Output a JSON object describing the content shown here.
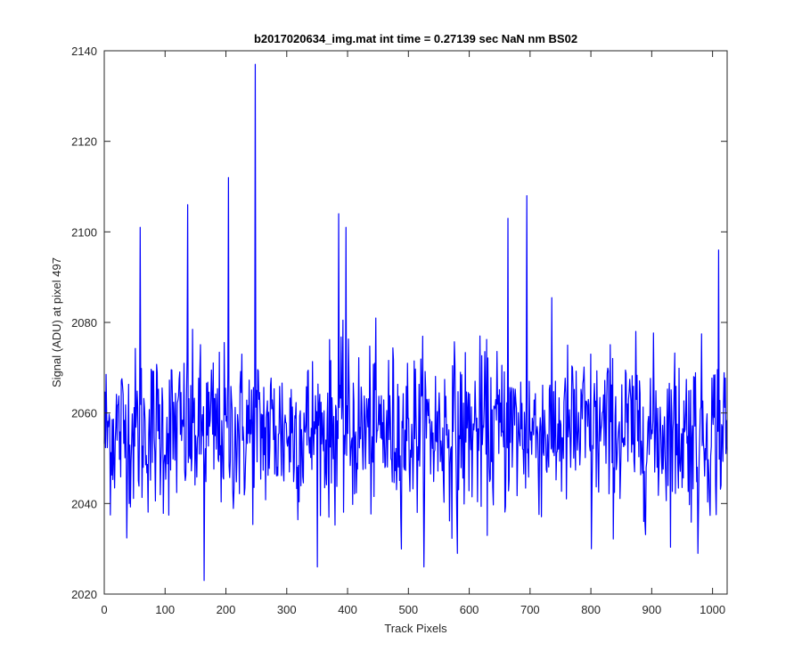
{
  "chart_data": {
    "type": "line",
    "title": "b2017020634_img.mat int time = 0.27139 sec  NaN nm BS02",
    "xlabel": "Track Pixels",
    "ylabel": "Signal (ADU) at pixel 497",
    "xlim": [
      0,
      1024
    ],
    "ylim": [
      2020,
      2140
    ],
    "xticks": [
      0,
      100,
      200,
      300,
      400,
      500,
      600,
      700,
      800,
      900,
      1000
    ],
    "yticks": [
      2020,
      2040,
      2060,
      2080,
      2100,
      2120,
      2140
    ],
    "xtick_labels": [
      "0",
      "100",
      "200",
      "300",
      "400",
      "500",
      "600",
      "700",
      "800",
      "900",
      "1000"
    ],
    "ytick_labels": [
      "2020",
      "2040",
      "2060",
      "2080",
      "2100",
      "2120",
      "2140"
    ],
    "grid": false,
    "series": [
      {
        "color": "#0000ff",
        "n_points": 1024,
        "baseline": 2056,
        "noise_amplitude": 9,
        "notable_points": [
          {
            "x": 59,
            "y": 2101
          },
          {
            "x": 137,
            "y": 2106
          },
          {
            "x": 164,
            "y": 2023
          },
          {
            "x": 204,
            "y": 2112
          },
          {
            "x": 248,
            "y": 2137
          },
          {
            "x": 385,
            "y": 2104
          },
          {
            "x": 397,
            "y": 2101
          },
          {
            "x": 580,
            "y": 2029
          },
          {
            "x": 663,
            "y": 2103
          },
          {
            "x": 694,
            "y": 2108
          },
          {
            "x": 800,
            "y": 2030
          },
          {
            "x": 975,
            "y": 2029
          },
          {
            "x": 1009,
            "y": 2096
          }
        ]
      }
    ]
  }
}
